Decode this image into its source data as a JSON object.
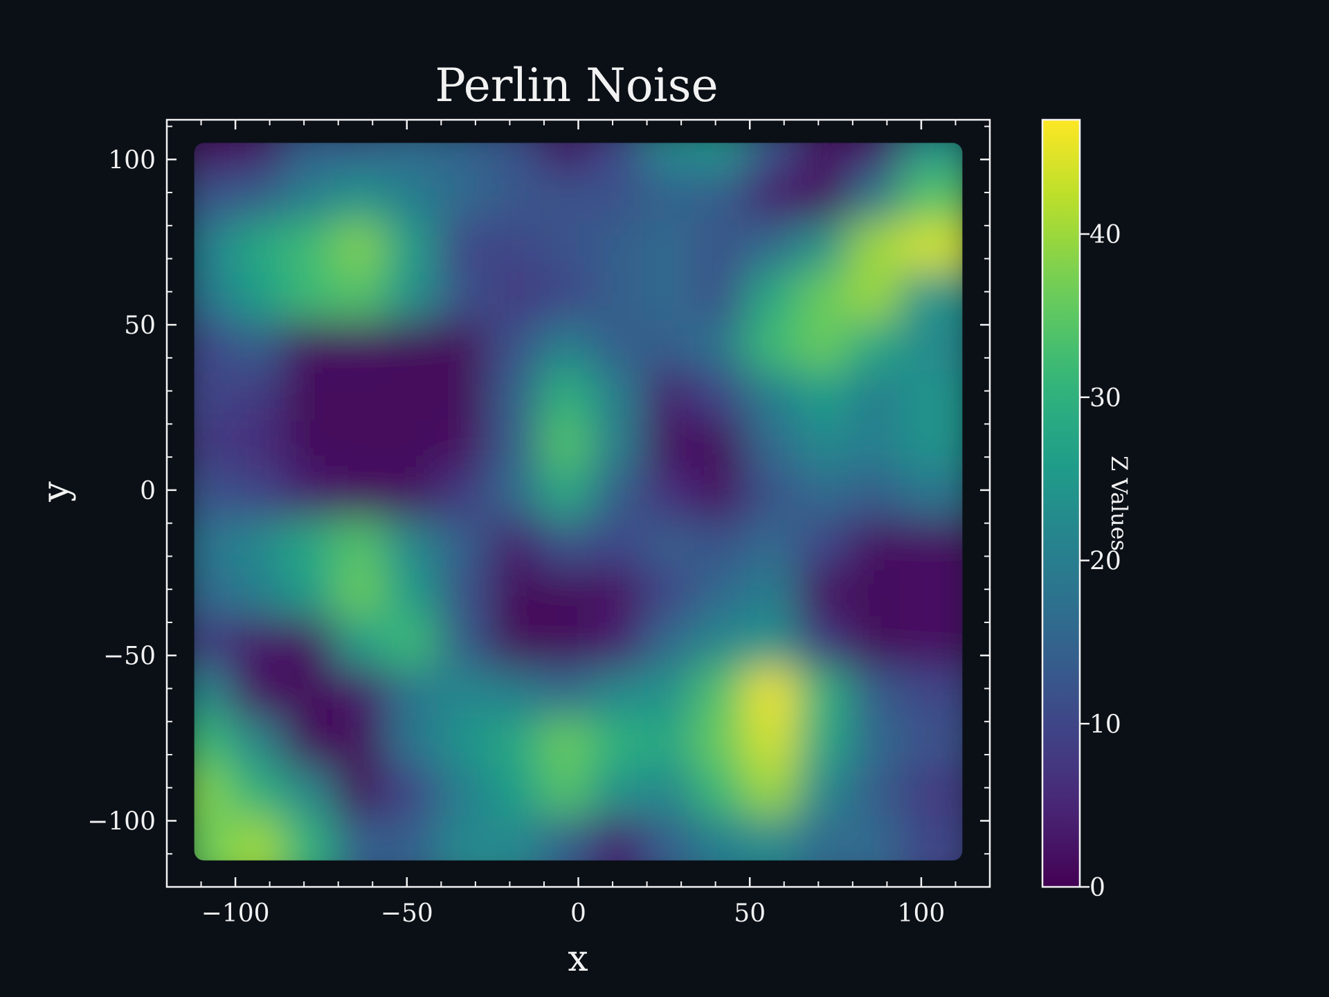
{
  "chart_data": {
    "type": "heatmap",
    "title": "Perlin Noise",
    "xlabel": "x",
    "ylabel": "y",
    "colorbar_label": "Z Values",
    "colormap": "viridis",
    "xlim": [
      -120,
      120
    ],
    "ylim": [
      -120,
      112
    ],
    "data_extent": {
      "x": [
        -112,
        112
      ],
      "y": [
        -112,
        105
      ]
    },
    "xticks": [
      -100,
      -50,
      0,
      50,
      100
    ],
    "xtick_labels": [
      "−100",
      "−50",
      "0",
      "50",
      "100"
    ],
    "yticks": [
      100,
      50,
      0,
      -50,
      -100
    ],
    "ytick_labels": [
      "100",
      "50",
      "0",
      "−50",
      "−100"
    ],
    "zlim": [
      0,
      47
    ],
    "cbar_ticks": [
      0,
      10,
      20,
      30,
      40
    ],
    "cbar_tick_labels": [
      "0",
      "10",
      "20",
      "30",
      "40"
    ],
    "grid": false,
    "z_rows_note_x": [
      -105,
      -90,
      -75,
      -60,
      -45,
      -30,
      -15,
      0,
      15,
      30,
      45,
      60,
      75,
      90,
      105
    ],
    "z_rows_note_y": [
      100,
      85,
      70,
      55,
      40,
      25,
      10,
      -5,
      -20,
      -35,
      -50,
      -65,
      -80,
      -95,
      -110
    ],
    "z": [
      [
        2,
        3,
        14,
        14,
        16,
        15,
        12,
        3,
        10,
        22,
        24,
        12,
        2,
        4,
        24
      ],
      [
        12,
        14,
        20,
        24,
        20,
        16,
        13,
        12,
        12,
        15,
        14,
        4,
        2,
        18,
        34
      ],
      [
        20,
        28,
        32,
        38,
        26,
        10,
        10,
        12,
        14,
        16,
        12,
        16,
        24,
        40,
        44
      ],
      [
        18,
        26,
        32,
        34,
        24,
        12,
        8,
        10,
        14,
        16,
        12,
        28,
        36,
        40,
        24
      ],
      [
        10,
        14,
        2,
        2,
        1,
        1,
        12,
        20,
        14,
        14,
        18,
        32,
        36,
        28,
        22
      ],
      [
        10,
        8,
        1,
        1,
        1,
        1,
        14,
        30,
        20,
        4,
        10,
        20,
        26,
        20,
        24
      ],
      [
        8,
        6,
        1,
        1,
        1,
        2,
        14,
        34,
        20,
        2,
        1,
        16,
        22,
        20,
        24
      ],
      [
        12,
        10,
        4,
        2,
        2,
        8,
        16,
        28,
        14,
        6,
        2,
        12,
        16,
        14,
        18
      ],
      [
        18,
        22,
        28,
        34,
        22,
        14,
        4,
        12,
        10,
        14,
        12,
        16,
        10,
        2,
        2
      ],
      [
        16,
        20,
        26,
        36,
        26,
        12,
        1,
        1,
        2,
        10,
        16,
        20,
        2,
        1,
        2
      ],
      [
        8,
        3,
        2,
        26,
        32,
        14,
        1,
        1,
        4,
        16,
        22,
        24,
        8,
        1,
        2
      ],
      [
        22,
        2,
        1,
        3,
        18,
        22,
        20,
        16,
        22,
        24,
        34,
        46,
        30,
        14,
        10
      ],
      [
        32,
        22,
        1,
        1,
        18,
        24,
        28,
        36,
        30,
        28,
        36,
        44,
        28,
        16,
        12
      ],
      [
        38,
        30,
        22,
        1,
        10,
        20,
        26,
        34,
        24,
        22,
        32,
        40,
        22,
        14,
        8
      ],
      [
        36,
        40,
        30,
        14,
        14,
        22,
        22,
        14,
        4,
        14,
        20,
        22,
        16,
        16,
        10
      ]
    ]
  }
}
